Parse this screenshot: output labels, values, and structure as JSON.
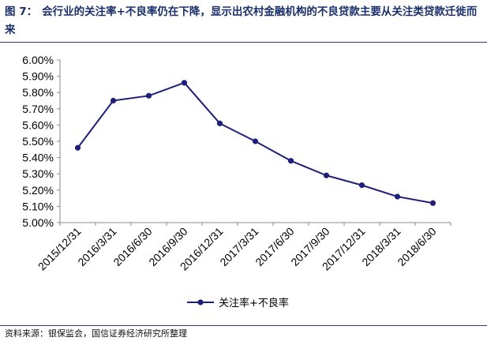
{
  "figure": {
    "label": "图 7：",
    "caption": "会行业的关注率+不良率仍在下降，显示出农村金融机构的不良贷款主要从关注类贷款迁徙而来"
  },
  "source": "资料来源：银保监会，国信证券经济研究所整理",
  "colors": {
    "line": "#1f1f7a",
    "rule": "#2c3e73"
  },
  "chart_data": {
    "type": "line",
    "title": "",
    "xlabel": "",
    "ylabel": "",
    "categories": [
      "2015/12/31",
      "2016/3/31",
      "2016/6/30",
      "2016/9/30",
      "2016/12/31",
      "2017/3/31",
      "2017/6/30",
      "2017/9/30",
      "2017/12/31",
      "2018/3/31",
      "2018/6/30"
    ],
    "series": [
      {
        "name": "关注率+不良率",
        "values": [
          5.46,
          5.75,
          5.78,
          5.86,
          5.61,
          5.5,
          5.38,
          5.29,
          5.23,
          5.16,
          5.12
        ]
      }
    ],
    "ylim": [
      5.0,
      6.0
    ],
    "yticks": [
      "5.00%",
      "5.10%",
      "5.20%",
      "5.30%",
      "5.40%",
      "5.50%",
      "5.60%",
      "5.70%",
      "5.80%",
      "5.90%",
      "6.00%"
    ],
    "grid": false,
    "legend": "bottom"
  }
}
